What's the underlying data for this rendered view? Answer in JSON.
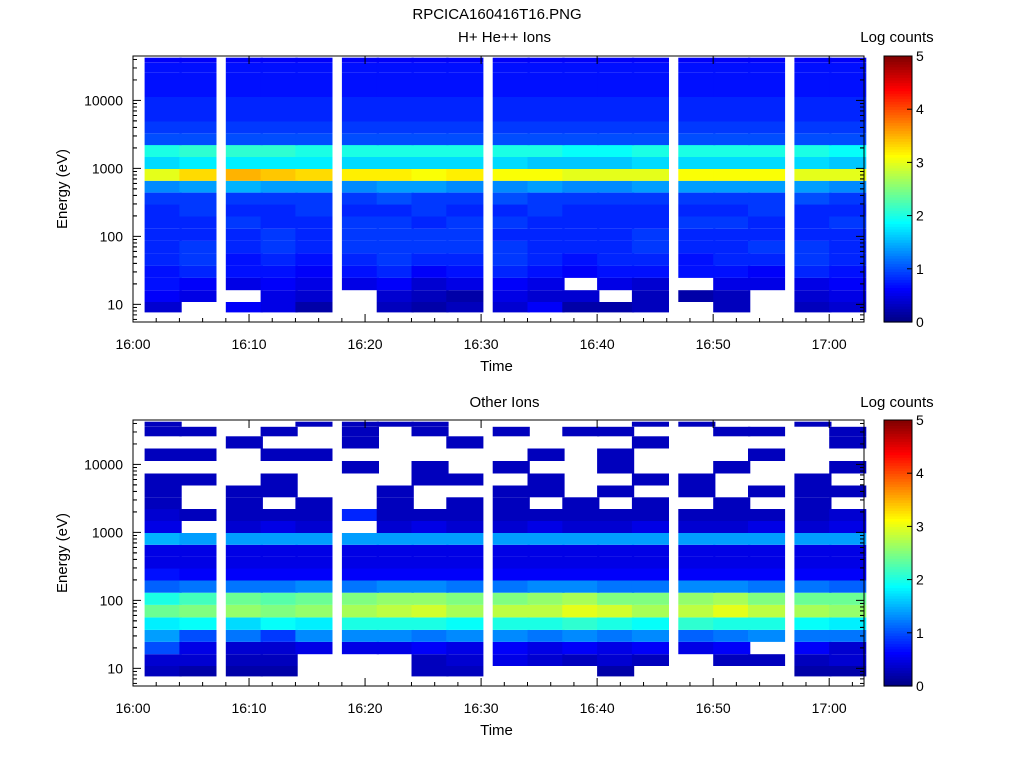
{
  "figure_title": "RPCICA160416T16.PNG",
  "chart_data": [
    {
      "type": "heatmap",
      "title": "H+ He++ Ions",
      "xlabel": "Time",
      "ylabel": "Energy (eV)",
      "x_ticks": [
        "16:00",
        "16:10",
        "16:20",
        "16:30",
        "16:40",
        "16:50",
        "17:00"
      ],
      "x_range": [
        "16:00",
        "17:03"
      ],
      "y_ticks": [
        "10",
        "100",
        "1000",
        "10000"
      ],
      "y_scale": "log",
      "y_range": [
        5.5,
        45000
      ],
      "colorbar": {
        "label": "Log counts",
        "ticks": [
          "0",
          "1",
          "2",
          "3",
          "4",
          "5"
        ],
        "range": [
          0,
          5
        ],
        "colormap": "jet"
      },
      "time_bins_start": [
        "16:01",
        "16:04",
        "16:08",
        "16:11",
        "16:14",
        "16:18",
        "16:21",
        "16:24",
        "16:27",
        "16:31",
        "16:34",
        "16:37",
        "16:40",
        "16:43",
        "16:47",
        "16:50",
        "16:53",
        "16:57",
        "17:00"
      ],
      "energy_rows_eV": [
        9,
        13,
        20,
        30,
        45,
        70,
        105,
        160,
        240,
        360,
        540,
        800,
        1200,
        1800,
        2700,
        4000,
        6000,
        9000,
        14000,
        21000,
        32000,
        40000
      ],
      "log_counts": [
        [
          0.4,
          0.0,
          0.6,
          0.5,
          0.2,
          0.0,
          0.3,
          0.2,
          0.3,
          0.4,
          0.6,
          0.2,
          0.2,
          0.3,
          0.0,
          0.3,
          0.0,
          0.3,
          0.4
        ],
        [
          0.6,
          0.5,
          0.0,
          0.5,
          0.4,
          0.0,
          0.4,
          0.3,
          0.2,
          0.5,
          0.4,
          0.4,
          0.0,
          0.3,
          0.2,
          0.3,
          0.0,
          0.4,
          0.5
        ],
        [
          0.7,
          0.6,
          0.5,
          0.6,
          0.5,
          0.5,
          0.6,
          0.4,
          0.5,
          0.6,
          0.5,
          0.0,
          0.5,
          0.4,
          0.0,
          0.5,
          0.5,
          0.5,
          0.6
        ],
        [
          0.7,
          0.8,
          0.7,
          0.7,
          0.6,
          0.7,
          0.8,
          0.6,
          0.7,
          0.8,
          0.7,
          0.6,
          0.7,
          0.7,
          0.7,
          0.7,
          0.6,
          0.8,
          0.7
        ],
        [
          0.8,
          0.9,
          0.7,
          0.8,
          0.7,
          0.8,
          0.9,
          0.8,
          0.8,
          0.9,
          0.8,
          0.7,
          0.8,
          0.8,
          0.7,
          0.8,
          0.8,
          0.9,
          0.8
        ],
        [
          0.8,
          0.9,
          0.8,
          0.9,
          0.8,
          0.9,
          0.9,
          0.9,
          0.9,
          0.9,
          0.8,
          0.8,
          0.8,
          0.9,
          0.8,
          0.8,
          0.9,
          0.9,
          0.8
        ],
        [
          0.8,
          0.8,
          0.8,
          0.9,
          0.8,
          0.9,
          0.9,
          0.9,
          0.9,
          0.8,
          0.8,
          0.8,
          0.8,
          0.9,
          0.8,
          0.8,
          0.8,
          0.8,
          0.8
        ],
        [
          0.8,
          0.8,
          0.9,
          0.8,
          0.8,
          0.9,
          0.9,
          0.8,
          0.9,
          0.9,
          0.8,
          0.8,
          0.8,
          0.8,
          0.9,
          0.9,
          0.8,
          0.8,
          0.9
        ],
        [
          0.8,
          0.9,
          0.8,
          0.8,
          0.9,
          0.8,
          0.8,
          0.9,
          0.8,
          0.8,
          0.9,
          0.8,
          0.8,
          0.8,
          0.8,
          0.8,
          0.9,
          0.8,
          0.8
        ],
        [
          0.9,
          0.9,
          0.9,
          0.9,
          0.9,
          0.9,
          1.0,
          0.9,
          0.9,
          1.0,
          0.9,
          0.9,
          0.9,
          0.9,
          0.9,
          0.9,
          0.9,
          1.0,
          0.9
        ],
        [
          1.3,
          1.4,
          1.5,
          1.4,
          1.4,
          1.3,
          1.4,
          1.4,
          1.3,
          1.3,
          1.4,
          1.3,
          1.3,
          1.4,
          1.4,
          1.4,
          1.4,
          1.4,
          1.3
        ],
        [
          3.0,
          3.3,
          3.5,
          3.4,
          3.3,
          3.2,
          3.2,
          3.1,
          3.2,
          3.1,
          3.1,
          3.0,
          3.0,
          3.0,
          3.1,
          3.1,
          3.1,
          3.0,
          3.0
        ],
        [
          1.7,
          1.8,
          1.8,
          1.8,
          1.8,
          1.7,
          1.7,
          1.7,
          1.7,
          1.7,
          1.6,
          1.6,
          1.6,
          1.7,
          1.7,
          1.7,
          1.7,
          1.7,
          1.6
        ],
        [
          2.0,
          2.1,
          2.1,
          2.1,
          2.0,
          2.0,
          2.0,
          2.0,
          2.0,
          2.0,
          2.0,
          1.9,
          1.9,
          2.0,
          2.0,
          2.0,
          2.0,
          2.0,
          1.9
        ],
        [
          1.0,
          1.0,
          1.0,
          1.0,
          1.0,
          1.0,
          1.0,
          1.0,
          1.0,
          1.0,
          1.0,
          1.0,
          1.0,
          1.0,
          1.0,
          1.0,
          1.0,
          1.0,
          1.0
        ],
        [
          0.9,
          0.9,
          0.9,
          0.9,
          0.9,
          0.9,
          0.9,
          0.9,
          0.9,
          0.9,
          0.9,
          0.9,
          0.9,
          0.9,
          0.9,
          0.9,
          0.9,
          0.9,
          0.9
        ],
        [
          0.8,
          0.8,
          0.8,
          0.8,
          0.8,
          0.8,
          0.8,
          0.8,
          0.8,
          0.8,
          0.8,
          0.8,
          0.8,
          0.8,
          0.8,
          0.8,
          0.8,
          0.8,
          0.8
        ],
        [
          0.8,
          0.8,
          0.8,
          0.8,
          0.8,
          0.8,
          0.8,
          0.8,
          0.8,
          0.8,
          0.8,
          0.8,
          0.8,
          0.8,
          0.8,
          0.8,
          0.8,
          0.8,
          0.8
        ],
        [
          0.7,
          0.7,
          0.7,
          0.7,
          0.7,
          0.7,
          0.7,
          0.7,
          0.7,
          0.7,
          0.7,
          0.7,
          0.7,
          0.7,
          0.7,
          0.7,
          0.7,
          0.7,
          0.7
        ],
        [
          0.7,
          0.7,
          0.7,
          0.7,
          0.7,
          0.7,
          0.7,
          0.7,
          0.7,
          0.7,
          0.7,
          0.7,
          0.7,
          0.7,
          0.7,
          0.7,
          0.7,
          0.7,
          0.7
        ],
        [
          0.7,
          0.7,
          0.7,
          0.7,
          0.7,
          0.7,
          0.7,
          0.7,
          0.7,
          0.7,
          0.7,
          0.7,
          0.7,
          0.7,
          0.7,
          0.7,
          0.7,
          0.7,
          0.7
        ],
        [
          0.6,
          0.6,
          0.6,
          0.6,
          0.6,
          0.6,
          0.6,
          0.6,
          0.6,
          0.6,
          0.6,
          0.6,
          0.6,
          0.6,
          0.6,
          0.6,
          0.6,
          0.6,
          0.6
        ]
      ]
    },
    {
      "type": "heatmap",
      "title": "Other Ions",
      "xlabel": "Time",
      "ylabel": "Energy (eV)",
      "x_ticks": [
        "16:00",
        "16:10",
        "16:20",
        "16:30",
        "16:40",
        "16:50",
        "17:00"
      ],
      "x_range": [
        "16:00",
        "17:03"
      ],
      "y_ticks": [
        "10",
        "100",
        "1000",
        "10000"
      ],
      "y_scale": "log",
      "y_range": [
        5.5,
        45000
      ],
      "colorbar": {
        "label": "Log counts",
        "ticks": [
          "0",
          "1",
          "2",
          "3",
          "4",
          "5"
        ],
        "range": [
          0,
          5
        ],
        "colormap": "jet"
      },
      "time_bins_start": [
        "16:01",
        "16:04",
        "16:08",
        "16:11",
        "16:14",
        "16:18",
        "16:21",
        "16:24",
        "16:27",
        "16:31",
        "16:34",
        "16:37",
        "16:40",
        "16:43",
        "16:47",
        "16:50",
        "16:53",
        "16:57",
        "17:00"
      ],
      "energy_rows_eV": [
        9,
        13,
        20,
        30,
        45,
        70,
        105,
        160,
        240,
        360,
        540,
        800,
        1200,
        1800,
        2700,
        4000,
        6000,
        9000,
        14000,
        21000,
        32000,
        40000
      ],
      "log_counts": [
        [
          0.3,
          0.2,
          0.2,
          0.2,
          0.0,
          0.0,
          0.0,
          0.3,
          0.3,
          0.0,
          0.0,
          0.0,
          0.2,
          0.0,
          0.0,
          0.0,
          0.0,
          0.2,
          0.2
        ],
        [
          0.4,
          0.4,
          0.3,
          0.3,
          0.0,
          0.0,
          0.0,
          0.3,
          0.4,
          0.5,
          0.4,
          0.3,
          0.4,
          0.3,
          0.0,
          0.3,
          0.3,
          0.3,
          0.4
        ],
        [
          1.0,
          0.5,
          0.4,
          0.4,
          0.5,
          0.5,
          0.5,
          0.6,
          0.5,
          0.6,
          0.5,
          0.6,
          0.5,
          0.6,
          0.5,
          0.6,
          0.0,
          0.6,
          0.4
        ],
        [
          1.4,
          1.0,
          1.2,
          0.9,
          1.3,
          1.3,
          1.3,
          1.2,
          1.3,
          1.3,
          1.2,
          1.3,
          1.2,
          1.3,
          1.1,
          1.2,
          1.3,
          1.2,
          1.2
        ],
        [
          1.8,
          1.9,
          1.7,
          1.9,
          1.8,
          2.0,
          2.0,
          2.0,
          1.9,
          2.0,
          2.0,
          2.1,
          2.0,
          1.9,
          2.1,
          2.0,
          2.0,
          1.9,
          1.8
        ],
        [
          2.4,
          2.5,
          2.6,
          2.5,
          2.6,
          2.7,
          2.8,
          2.9,
          2.7,
          2.8,
          2.8,
          3.0,
          2.9,
          2.7,
          2.8,
          3.0,
          2.8,
          2.7,
          2.6
        ],
        [
          2.0,
          2.2,
          2.4,
          2.3,
          2.4,
          2.5,
          2.6,
          2.6,
          2.5,
          2.5,
          2.6,
          2.7,
          2.5,
          2.5,
          2.6,
          2.7,
          2.5,
          2.4,
          2.4
        ],
        [
          1.1,
          1.2,
          1.2,
          1.2,
          1.3,
          1.2,
          1.3,
          1.3,
          1.2,
          1.2,
          1.3,
          1.3,
          1.2,
          1.2,
          1.3,
          1.3,
          1.2,
          1.2,
          1.1
        ],
        [
          0.7,
          0.6,
          0.6,
          0.6,
          0.6,
          0.6,
          0.6,
          0.6,
          0.6,
          0.6,
          0.6,
          0.6,
          0.6,
          0.6,
          0.6,
          0.6,
          0.6,
          0.6,
          0.6
        ],
        [
          0.5,
          0.5,
          0.5,
          0.5,
          0.5,
          0.5,
          0.5,
          0.5,
          0.5,
          0.5,
          0.5,
          0.5,
          0.5,
          0.5,
          0.5,
          0.5,
          0.5,
          0.5,
          0.5
        ],
        [
          0.5,
          0.5,
          0.5,
          0.5,
          0.5,
          0.5,
          0.5,
          0.5,
          0.5,
          0.5,
          0.5,
          0.5,
          0.5,
          0.5,
          0.5,
          0.5,
          0.5,
          0.5,
          0.5
        ],
        [
          1.5,
          1.4,
          1.4,
          1.4,
          1.4,
          1.4,
          1.4,
          1.4,
          1.4,
          1.4,
          1.4,
          1.4,
          1.4,
          1.4,
          1.4,
          1.4,
          1.4,
          1.4,
          1.4
        ],
        [
          0.5,
          0.0,
          0.4,
          0.5,
          0.4,
          0.0,
          0.4,
          0.5,
          0.4,
          0.4,
          0.5,
          0.4,
          0.4,
          0.5,
          0.4,
          0.4,
          0.5,
          0.4,
          0.5
        ],
        [
          0.4,
          0.3,
          0.3,
          0.3,
          0.3,
          0.8,
          0.3,
          0.3,
          0.3,
          0.3,
          0.3,
          0.3,
          0.3,
          0.3,
          0.3,
          0.3,
          0.3,
          0.3,
          0.4
        ],
        [
          0.3,
          0.0,
          0.3,
          0.0,
          0.3,
          0.0,
          0.3,
          0.0,
          0.3,
          0.3,
          0.0,
          0.3,
          0.0,
          0.3,
          0.0,
          0.3,
          0.0,
          0.3,
          0.0
        ],
        [
          0.3,
          0.0,
          0.3,
          0.3,
          0.0,
          0.0,
          0.3,
          0.0,
          0.0,
          0.3,
          0.3,
          0.0,
          0.3,
          0.0,
          0.3,
          0.0,
          0.3,
          0.3,
          0.3
        ],
        [
          0.3,
          0.3,
          0.0,
          0.3,
          0.0,
          0.0,
          0.0,
          0.3,
          0.3,
          0.0,
          0.3,
          0.0,
          0.0,
          0.3,
          0.3,
          0.0,
          0.0,
          0.3,
          0.0
        ],
        [
          0.0,
          0.0,
          0.0,
          0.0,
          0.0,
          0.3,
          0.0,
          0.3,
          0.0,
          0.3,
          0.0,
          0.0,
          0.3,
          0.0,
          0.0,
          0.3,
          0.0,
          0.0,
          0.3
        ],
        [
          0.3,
          0.3,
          0.0,
          0.3,
          0.3,
          0.0,
          0.0,
          0.0,
          0.0,
          0.0,
          0.3,
          0.0,
          0.3,
          0.0,
          0.0,
          0.0,
          0.3,
          0.0,
          0.0
        ],
        [
          0.0,
          0.0,
          0.3,
          0.0,
          0.0,
          0.3,
          0.0,
          0.0,
          0.3,
          0.0,
          0.0,
          0.0,
          0.0,
          0.3,
          0.0,
          0.0,
          0.0,
          0.0,
          0.3
        ],
        [
          0.3,
          0.3,
          0.0,
          0.3,
          0.0,
          0.3,
          0.0,
          0.3,
          0.0,
          0.3,
          0.0,
          0.3,
          0.3,
          0.0,
          0.0,
          0.3,
          0.3,
          0.0,
          0.3
        ],
        [
          0.3,
          0.0,
          0.0,
          0.0,
          0.3,
          0.3,
          0.3,
          0.3,
          0.0,
          0.0,
          0.0,
          0.0,
          0.0,
          0.3,
          0.3,
          0.0,
          0.0,
          0.3,
          0.0
        ]
      ]
    }
  ]
}
